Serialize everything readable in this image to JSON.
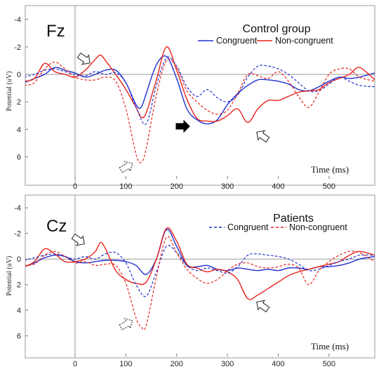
{
  "chart_data": [
    {
      "type": "line",
      "panel_label": "Fz",
      "title": "Control group",
      "xlabel": "Time (ms)",
      "ylabel": "Potential (uV)",
      "xlim": [
        -100,
        590
      ],
      "ylim": [
        -5,
        7.5
      ],
      "y_inverted": true,
      "xticks": [
        0,
        100,
        200,
        300,
        400,
        500
      ],
      "yticks": [
        -4,
        -2,
        0,
        2,
        4,
        6
      ],
      "grid": false,
      "legend_position": "top-right",
      "series": [
        {
          "name": "Congruent",
          "color": "#1f2fcf",
          "dash": "solid",
          "x": [
            -100,
            -80,
            -60,
            -40,
            -20,
            0,
            20,
            40,
            60,
            80,
            100,
            120,
            130,
            140,
            160,
            180,
            200,
            220,
            240,
            260,
            280,
            300,
            320,
            340,
            360,
            380,
            400,
            420,
            440,
            460,
            480,
            500,
            520,
            540,
            560,
            590
          ],
          "y": [
            0.6,
            0.3,
            0,
            -0.5,
            -0.3,
            -0.1,
            0.2,
            0,
            -0.3,
            -0.3,
            0.6,
            2.2,
            2.4,
            1.4,
            -0.7,
            -1.3,
            0.3,
            2.5,
            3.3,
            3.6,
            3.3,
            2.2,
            1.4,
            0.8,
            0.4,
            0.4,
            0.5,
            0.7,
            1.1,
            1.2,
            0.9,
            0.5,
            0.2,
            0.3,
            0.2,
            -0.1
          ]
        },
        {
          "name": "Non-congruent",
          "color": "#e8241c",
          "dash": "solid",
          "x": [
            -100,
            -80,
            -60,
            -40,
            -20,
            0,
            20,
            40,
            50,
            60,
            80,
            100,
            120,
            130,
            140,
            160,
            180,
            200,
            220,
            240,
            260,
            280,
            300,
            320,
            340,
            360,
            380,
            400,
            420,
            440,
            460,
            480,
            500,
            520,
            540,
            560,
            590
          ],
          "y": [
            0.5,
            0.3,
            -0.8,
            -0.2,
            0,
            0.2,
            -0.3,
            -1.1,
            -1.4,
            -1,
            0,
            1.1,
            2.4,
            3.1,
            2.8,
            0.4,
            -2,
            -0.3,
            1.8,
            3.2,
            3.4,
            3.4,
            3,
            2.5,
            3.5,
            2.5,
            1.9,
            1.9,
            1.6,
            1.3,
            1.2,
            1.1,
            0.6,
            0.3,
            0,
            -0.5,
            0.4
          ]
        },
        {
          "name": "Congruent (dashed)",
          "color": "#1f2fcf",
          "dash": "dashed",
          "x": [
            -100,
            -80,
            -60,
            -40,
            -20,
            0,
            20,
            40,
            60,
            80,
            100,
            120,
            140,
            160,
            180,
            200,
            220,
            240,
            260,
            280,
            300,
            320,
            340,
            360,
            380,
            400,
            420,
            440,
            460,
            480,
            500,
            520,
            540,
            560,
            590
          ],
          "y": [
            0.2,
            0,
            -0.3,
            -0.4,
            -0.2,
            0,
            0.1,
            -0.2,
            0,
            -0.1,
            0.6,
            2.4,
            3.6,
            0.8,
            -1.2,
            -0.6,
            0.9,
            1.6,
            1.1,
            1.7,
            2,
            1.5,
            0.2,
            -0.6,
            -0.6,
            -0.4,
            0,
            0.6,
            1.2,
            1.2,
            0.7,
            0.2,
            0.5,
            0.8,
            0.9
          ]
        },
        {
          "name": "Non-congruent (dashed)",
          "color": "#e8241c",
          "dash": "dashed",
          "x": [
            -100,
            -80,
            -60,
            -40,
            -20,
            0,
            20,
            40,
            60,
            80,
            100,
            120,
            130,
            140,
            160,
            180,
            200,
            220,
            240,
            260,
            280,
            300,
            320,
            340,
            360,
            380,
            400,
            420,
            440,
            460,
            480,
            500,
            520,
            540,
            560,
            590
          ],
          "y": [
            0.8,
            0.6,
            -0.4,
            -0.9,
            -0.4,
            0.2,
            0.4,
            0.4,
            0.2,
            0.5,
            2.5,
            5.8,
            6.4,
            5.4,
            1.5,
            -1,
            -0.5,
            1.2,
            2,
            2.6,
            2.9,
            2.6,
            1.4,
            0,
            0.1,
            0.3,
            -0.2,
            0.5,
            1.6,
            2.4,
            1.3,
            0,
            -0.4,
            -0.4,
            0.2,
            0.5
          ]
        }
      ]
    },
    {
      "type": "line",
      "panel_label": "Cz",
      "title": "Patients",
      "xlabel": "Time (ms)",
      "ylabel": "Potential (uV)",
      "xlim": [
        -100,
        590
      ],
      "ylim": [
        -5,
        7.5
      ],
      "y_inverted": true,
      "xticks": [
        0,
        100,
        200,
        300,
        400,
        500
      ],
      "yticks": [
        -4,
        -2,
        0,
        2,
        4,
        6
      ],
      "grid": false,
      "legend_position": "top-right",
      "series": [
        {
          "name": "Congruent (solid)",
          "color": "#1f2fcf",
          "dash": "solid",
          "x": [
            -100,
            -80,
            -60,
            -40,
            -20,
            0,
            20,
            40,
            60,
            80,
            100,
            120,
            140,
            160,
            180,
            200,
            220,
            240,
            260,
            280,
            300,
            320,
            340,
            360,
            380,
            400,
            420,
            440,
            460,
            480,
            500,
            520,
            540,
            560,
            590
          ],
          "y": [
            0.6,
            0.3,
            -0.1,
            -0.3,
            -0.2,
            0.2,
            0.3,
            0.2,
            0.1,
            0.1,
            0.2,
            0.5,
            1.2,
            0,
            -2.3,
            -1,
            0.5,
            0.6,
            0.5,
            0.8,
            0.9,
            0.7,
            0.8,
            0.9,
            0.8,
            0.9,
            0.7,
            0.7,
            0.8,
            0.6,
            0.6,
            0.5,
            0.3,
            0,
            -0.2
          ]
        },
        {
          "name": "Non-congruent (solid)",
          "color": "#e8241c",
          "dash": "solid",
          "x": [
            -100,
            -80,
            -60,
            -40,
            -20,
            0,
            20,
            40,
            50,
            60,
            80,
            100,
            120,
            140,
            160,
            180,
            200,
            220,
            240,
            260,
            280,
            300,
            320,
            340,
            360,
            380,
            400,
            420,
            440,
            460,
            480,
            500,
            520,
            540,
            560,
            590
          ],
          "y": [
            0.6,
            0.2,
            -0.8,
            -0.4,
            0.2,
            0.2,
            0,
            -0.6,
            -1.3,
            -0.8,
            0.9,
            1.6,
            1.9,
            1.8,
            0,
            -2.4,
            -1.4,
            0.4,
            0.7,
            1,
            0.8,
            1,
            1.6,
            3.1,
            2.8,
            2.3,
            1.8,
            1.3,
            1,
            0.8,
            0.6,
            0.4,
            0.2,
            -0.3,
            -0.6,
            -0.3
          ]
        },
        {
          "name": "Congruent",
          "color": "#1f2fcf",
          "dash": "dashed",
          "x": [
            -100,
            -80,
            -60,
            -40,
            -20,
            0,
            20,
            40,
            60,
            80,
            100,
            120,
            140,
            160,
            180,
            200,
            220,
            240,
            260,
            280,
            300,
            320,
            340,
            360,
            380,
            400,
            420,
            440,
            460,
            480,
            500,
            520,
            540,
            560,
            590
          ],
          "y": [
            0.1,
            -0.1,
            -0.3,
            -0.4,
            -0.2,
            0,
            -0.2,
            0,
            -0.4,
            -0.5,
            0.3,
            2,
            2.9,
            1,
            -1,
            -0.5,
            0.5,
            0.9,
            0.7,
            0.9,
            1.1,
            0.6,
            -0.3,
            -0.4,
            -0.3,
            -0.2,
            0,
            0.4,
            0.9,
            0.8,
            0.5,
            0.2,
            0,
            -0.3,
            -0.3
          ]
        },
        {
          "name": "Non-congruent",
          "color": "#e8241c",
          "dash": "dashed",
          "x": [
            -100,
            -80,
            -60,
            -40,
            -20,
            0,
            20,
            40,
            60,
            80,
            100,
            120,
            130,
            140,
            160,
            180,
            200,
            220,
            240,
            260,
            280,
            300,
            320,
            340,
            360,
            380,
            400,
            420,
            440,
            460,
            480,
            500,
            520,
            540,
            560,
            590
          ],
          "y": [
            0.5,
            0.4,
            -0.3,
            -0.6,
            -0.2,
            0.3,
            0.2,
            0.5,
            0.4,
            0.5,
            1.9,
            4.6,
            5.3,
            5.2,
            1.4,
            -1.7,
            -0.5,
            0.8,
            1.5,
            1.9,
            1.6,
            0.9,
            0.4,
            0.3,
            0.6,
            0.7,
            0.6,
            0.4,
            0.7,
            2,
            0.9,
            0.2,
            -0.3,
            -0.6,
            -0.5,
            0.2
          ]
        }
      ]
    }
  ]
}
